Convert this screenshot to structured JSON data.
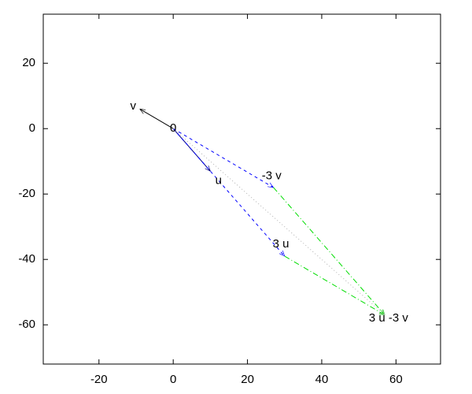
{
  "chart_data": {
    "type": "vector",
    "xlim": [
      -35,
      72
    ],
    "ylim": [
      -72,
      35
    ],
    "xticks": [
      -20,
      0,
      20,
      40,
      60
    ],
    "yticks": [
      -60,
      -40,
      -20,
      0,
      20
    ],
    "grid": false,
    "vectors": [
      {
        "x0": 0,
        "y0": 0,
        "x1": 10,
        "y1": -13,
        "color": "#000080",
        "dash": "solid"
      },
      {
        "x0": 0,
        "y0": 0,
        "x1": -9,
        "y1": 6,
        "color": "#000000",
        "dash": "solid"
      },
      {
        "x0": 0,
        "y0": 0,
        "x1": 30,
        "y1": -39,
        "color": "#0000ff",
        "dash": "dashed"
      },
      {
        "x0": 0,
        "y0": 0,
        "x1": 27,
        "y1": -18,
        "color": "#0000ff",
        "dash": "dashed"
      },
      {
        "x0": 30,
        "y0": -39,
        "x1": 57,
        "y1": -57,
        "color": "#00dd00",
        "dash": "dashdot"
      },
      {
        "x0": 27,
        "y0": -18,
        "x1": 57,
        "y1": -57,
        "color": "#00dd00",
        "dash": "dashdot"
      },
      {
        "x0": 0,
        "y0": 0,
        "x1": 57,
        "y1": -57,
        "color": "#b0b0b0",
        "dash": "dotted"
      }
    ],
    "labels": [
      {
        "text": "v",
        "x": -10.8,
        "y": 6.8
      },
      {
        "text": "0",
        "x": 0,
        "y": 0
      },
      {
        "text": "u",
        "x": 12.2,
        "y": -16
      },
      {
        "text": "-3 v",
        "x": 26.5,
        "y": -14.5
      },
      {
        "text": "3 u",
        "x": 29,
        "y": -35.4
      },
      {
        "text": "3 u -3 v",
        "x": 58,
        "y": -58
      }
    ]
  }
}
